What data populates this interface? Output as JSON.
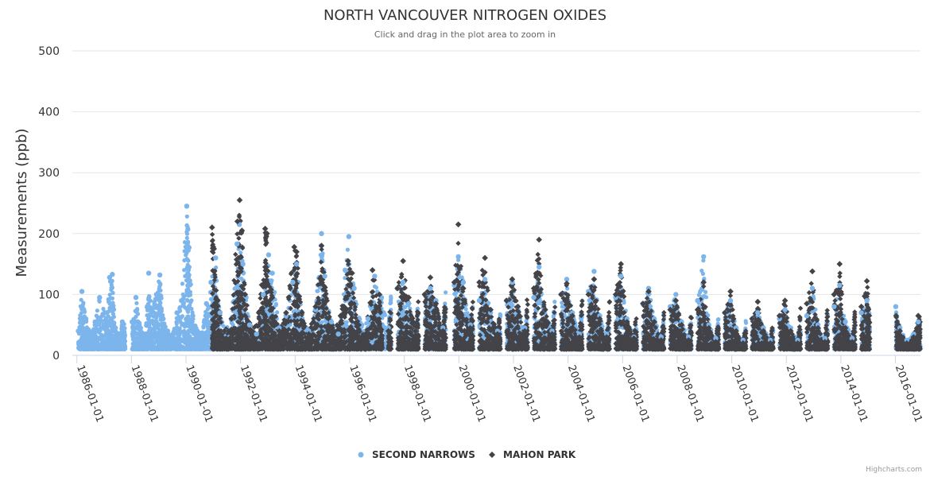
{
  "chart_data": {
    "type": "scatter",
    "title": "NORTH VANCOUVER NITROGEN OXIDES",
    "subtitle": "Click and drag in the plot area to zoom in",
    "ylabel": "Measurements (ppb)",
    "ylim": [
      0,
      500
    ],
    "yticks": [
      "0",
      "100",
      "200",
      "300",
      "400",
      "500"
    ],
    "xlim": [
      "1985-11-01",
      "2016-12-01"
    ],
    "xticks": [
      "1986-01-01",
      "1988-01-01",
      "1990-01-01",
      "1992-01-01",
      "1994-01-01",
      "1996-01-01",
      "1998-01-01",
      "2000-01-01",
      "2002-01-01",
      "2004-01-01",
      "2006-01-01",
      "2008-01-01",
      "2010-01-01",
      "2012-01-01",
      "2014-01-01",
      "2016-01-01"
    ],
    "grid": true,
    "legend_position": "bottom-center",
    "credits": "Highcharts.com",
    "series": [
      {
        "name": "SECOND NARROWS",
        "color": "#7cb5ec",
        "marker": "circle",
        "points": [
          [
            "1986-01-20",
            40
          ],
          [
            "1986-03-10",
            105
          ],
          [
            "1986-05-01",
            60
          ],
          [
            "1986-07-01",
            35
          ],
          [
            "1986-09-01",
            55
          ],
          [
            "1986-11-01",
            95
          ],
          [
            "1987-02-01",
            70
          ],
          [
            "1987-03-15",
            128
          ],
          [
            "1987-04-20",
            133
          ],
          [
            "1987-06-01",
            45
          ],
          [
            "1987-07-15",
            30
          ],
          [
            "1987-09-01",
            55
          ],
          [
            "1988-01-10",
            55
          ],
          [
            "1988-03-01",
            95
          ],
          [
            "1988-05-01",
            45
          ],
          [
            "1988-07-01",
            35
          ],
          [
            "1988-08-20",
            135
          ],
          [
            "1988-10-01",
            75
          ],
          [
            "1988-12-01",
            100
          ],
          [
            "1989-01-15",
            132
          ],
          [
            "1989-03-01",
            60
          ],
          [
            "1989-05-01",
            40
          ],
          [
            "1989-07-01",
            30
          ],
          [
            "1989-09-01",
            70
          ],
          [
            "1989-11-01",
            90
          ],
          [
            "1990-01-10",
            245
          ],
          [
            "1990-01-25",
            207
          ],
          [
            "1990-02-10",
            177
          ],
          [
            "1990-04-01",
            65
          ],
          [
            "1990-06-01",
            40
          ],
          [
            "1990-08-01",
            35
          ],
          [
            "1990-10-01",
            85
          ],
          [
            "1990-12-01",
            120
          ],
          [
            "1991-02-01",
            160
          ],
          [
            "1991-04-01",
            70
          ],
          [
            "1991-06-01",
            40
          ],
          [
            "1991-09-01",
            60
          ],
          [
            "1991-11-15",
            183
          ],
          [
            "1991-12-15",
            215
          ],
          [
            "1992-02-01",
            150
          ],
          [
            "1992-05-01",
            50
          ],
          [
            "1992-08-01",
            35
          ],
          [
            "1992-11-01",
            100
          ],
          [
            "1993-01-10",
            165
          ],
          [
            "1993-03-01",
            135
          ],
          [
            "1993-06-01",
            45
          ],
          [
            "1993-09-01",
            65
          ],
          [
            "1993-12-01",
            120
          ],
          [
            "1994-01-20",
            150
          ],
          [
            "1994-04-01",
            70
          ],
          [
            "1994-07-01",
            40
          ],
          [
            "1994-10-01",
            75
          ],
          [
            "1994-12-20",
            200
          ],
          [
            "1995-02-01",
            130
          ],
          [
            "1995-05-01",
            55
          ],
          [
            "1995-08-01",
            35
          ],
          [
            "1995-11-01",
            140
          ],
          [
            "1995-12-20",
            195
          ],
          [
            "1996-03-01",
            110
          ],
          [
            "1996-06-01",
            50
          ],
          [
            "1996-09-01",
            60
          ],
          [
            "1996-12-01",
            130
          ],
          [
            "1997-03-01",
            95
          ],
          [
            "1997-06-01",
            45
          ],
          [
            "1997-10-01",
            110
          ],
          [
            "1997-12-15",
            120
          ],
          [
            "1998-03-01",
            85
          ],
          [
            "1998-06-01",
            40
          ],
          [
            "1998-10-01",
            100
          ],
          [
            "1998-12-15",
            110
          ],
          [
            "1999-03-01",
            90
          ],
          [
            "1999-06-01",
            45
          ],
          [
            "1999-11-01",
            115
          ],
          [
            "1999-12-25",
            162
          ],
          [
            "2000-03-01",
            120
          ],
          [
            "2000-06-01",
            50
          ],
          [
            "2000-10-01",
            90
          ],
          [
            "2000-12-15",
            125
          ],
          [
            "2001-03-01",
            70
          ],
          [
            "2001-06-01",
            40
          ],
          [
            "2001-10-01",
            90
          ],
          [
            "2001-12-15",
            120
          ],
          [
            "2002-03-01",
            80
          ],
          [
            "2002-06-01",
            45
          ],
          [
            "2002-10-01",
            95
          ],
          [
            "2002-12-10",
            145
          ],
          [
            "2003-03-01",
            75
          ],
          [
            "2003-06-01",
            40
          ],
          [
            "2003-10-01",
            100
          ],
          [
            "2003-12-15",
            125
          ],
          [
            "2004-03-01",
            70
          ],
          [
            "2004-06-01",
            35
          ],
          [
            "2004-10-01",
            105
          ],
          [
            "2004-12-15",
            138
          ],
          [
            "2005-03-01",
            65
          ],
          [
            "2005-06-01",
            35
          ],
          [
            "2005-10-01",
            95
          ],
          [
            "2005-12-10",
            130
          ],
          [
            "2006-03-01",
            60
          ],
          [
            "2006-06-01",
            30
          ],
          [
            "2006-10-01",
            85
          ],
          [
            "2006-12-15",
            110
          ],
          [
            "2007-03-01",
            60
          ],
          [
            "2007-06-01",
            30
          ],
          [
            "2007-10-01",
            80
          ],
          [
            "2007-12-15",
            100
          ],
          [
            "2008-03-01",
            55
          ],
          [
            "2008-06-01",
            30
          ],
          [
            "2008-10-01",
            90
          ],
          [
            "2008-12-20",
            162
          ],
          [
            "2009-03-01",
            50
          ],
          [
            "2009-06-01",
            28
          ],
          [
            "2009-10-01",
            70
          ],
          [
            "2009-12-15",
            90
          ],
          [
            "2010-03-01",
            45
          ],
          [
            "2010-06-01",
            25
          ],
          [
            "2010-10-01",
            60
          ],
          [
            "2010-12-15",
            70
          ],
          [
            "2011-03-01",
            45
          ],
          [
            "2011-06-01",
            25
          ],
          [
            "2011-10-01",
            60
          ],
          [
            "2011-12-15",
            75
          ],
          [
            "2012-03-01",
            45
          ],
          [
            "2012-06-01",
            25
          ],
          [
            "2012-10-01",
            65
          ],
          [
            "2012-12-15",
            110
          ],
          [
            "2013-03-01",
            50
          ],
          [
            "2013-06-01",
            28
          ],
          [
            "2013-10-01",
            80
          ],
          [
            "2013-12-15",
            115
          ],
          [
            "2014-03-01",
            55
          ],
          [
            "2014-06-01",
            28
          ],
          [
            "2014-10-01",
            70
          ],
          [
            "2014-12-15",
            90
          ],
          [
            "2016-01-05",
            80
          ],
          [
            "2016-03-01",
            45
          ],
          [
            "2016-06-01",
            25
          ],
          [
            "2016-09-01",
            35
          ],
          [
            "2016-11-01",
            55
          ]
        ]
      },
      {
        "name": "MAHON PARK",
        "color": "#434348",
        "marker": "diamond",
        "points": [
          [
            "1990-12-15",
            210
          ],
          [
            "1991-01-10",
            175
          ],
          [
            "1991-03-01",
            90
          ],
          [
            "1991-06-01",
            40
          ],
          [
            "1991-09-01",
            60
          ],
          [
            "1991-11-20",
            220
          ],
          [
            "1991-12-20",
            255
          ],
          [
            "1992-01-20",
            205
          ],
          [
            "1992-03-01",
            100
          ],
          [
            "1992-06-01",
            40
          ],
          [
            "1992-09-01",
            70
          ],
          [
            "1992-11-25",
            208
          ],
          [
            "1992-12-20",
            200
          ],
          [
            "1993-03-01",
            95
          ],
          [
            "1993-06-01",
            40
          ],
          [
            "1993-09-01",
            70
          ],
          [
            "1993-12-20",
            178
          ],
          [
            "1994-01-20",
            170
          ],
          [
            "1994-04-01",
            70
          ],
          [
            "1994-07-01",
            35
          ],
          [
            "1994-10-01",
            80
          ],
          [
            "1994-12-20",
            180
          ],
          [
            "1995-03-01",
            90
          ],
          [
            "1995-06-01",
            40
          ],
          [
            "1995-09-01",
            65
          ],
          [
            "1995-12-10",
            155
          ],
          [
            "1996-02-01",
            135
          ],
          [
            "1996-05-01",
            50
          ],
          [
            "1996-08-01",
            35
          ],
          [
            "1996-11-01",
            140
          ],
          [
            "1997-02-01",
            100
          ],
          [
            "1997-06-01",
            40
          ],
          [
            "1997-10-01",
            110
          ],
          [
            "1997-12-15",
            155
          ],
          [
            "1998-03-01",
            95
          ],
          [
            "1998-06-01",
            40
          ],
          [
            "1998-10-01",
            100
          ],
          [
            "1998-12-15",
            128
          ],
          [
            "1999-03-01",
            85
          ],
          [
            "1999-06-01",
            40
          ],
          [
            "1999-11-01",
            120
          ],
          [
            "1999-12-25",
            215
          ],
          [
            "2000-03-01",
            110
          ],
          [
            "2000-06-01",
            45
          ],
          [
            "2000-10-01",
            120
          ],
          [
            "2000-12-15",
            160
          ],
          [
            "2001-03-01",
            75
          ],
          [
            "2001-06-01",
            35
          ],
          [
            "2001-10-01",
            90
          ],
          [
            "2001-12-15",
            125
          ],
          [
            "2002-03-01",
            80
          ],
          [
            "2002-06-01",
            40
          ],
          [
            "2002-10-01",
            110
          ],
          [
            "2002-12-10",
            190
          ],
          [
            "2003-03-01",
            75
          ],
          [
            "2003-06-01",
            35
          ],
          [
            "2003-10-01",
            100
          ],
          [
            "2003-12-15",
            118
          ],
          [
            "2004-03-01",
            65
          ],
          [
            "2004-06-01",
            30
          ],
          [
            "2004-10-01",
            100
          ],
          [
            "2004-12-15",
            125
          ],
          [
            "2005-03-01",
            60
          ],
          [
            "2005-06-01",
            30
          ],
          [
            "2005-10-01",
            100
          ],
          [
            "2005-12-10",
            150
          ],
          [
            "2006-03-01",
            55
          ],
          [
            "2006-06-01",
            28
          ],
          [
            "2006-10-01",
            85
          ],
          [
            "2006-12-15",
            105
          ],
          [
            "2007-03-01",
            55
          ],
          [
            "2007-06-01",
            25
          ],
          [
            "2007-10-01",
            75
          ],
          [
            "2007-12-15",
            90
          ],
          [
            "2008-03-01",
            50
          ],
          [
            "2008-06-01",
            25
          ],
          [
            "2008-10-01",
            75
          ],
          [
            "2008-12-20",
            120
          ],
          [
            "2009-03-01",
            45
          ],
          [
            "2009-06-01",
            22
          ],
          [
            "2009-10-01",
            70
          ],
          [
            "2009-12-15",
            105
          ],
          [
            "2010-03-01",
            40
          ],
          [
            "2010-06-01",
            20
          ],
          [
            "2010-10-01",
            60
          ],
          [
            "2010-12-15",
            88
          ],
          [
            "2011-03-01",
            40
          ],
          [
            "2011-06-01",
            20
          ],
          [
            "2011-10-01",
            65
          ],
          [
            "2011-12-15",
            90
          ],
          [
            "2012-03-01",
            40
          ],
          [
            "2012-06-01",
            20
          ],
          [
            "2012-10-01",
            85
          ],
          [
            "2012-12-15",
            138
          ],
          [
            "2013-03-01",
            45
          ],
          [
            "2013-06-01",
            22
          ],
          [
            "2013-10-01",
            100
          ],
          [
            "2013-12-15",
            150
          ],
          [
            "2014-03-01",
            45
          ],
          [
            "2014-06-01",
            22
          ],
          [
            "2014-10-01",
            80
          ],
          [
            "2014-12-15",
            122
          ],
          [
            "2016-01-10",
            65
          ],
          [
            "2016-03-01",
            40
          ],
          [
            "2016-06-01",
            20
          ],
          [
            "2016-09-01",
            30
          ],
          [
            "2016-11-01",
            65
          ]
        ]
      }
    ]
  }
}
